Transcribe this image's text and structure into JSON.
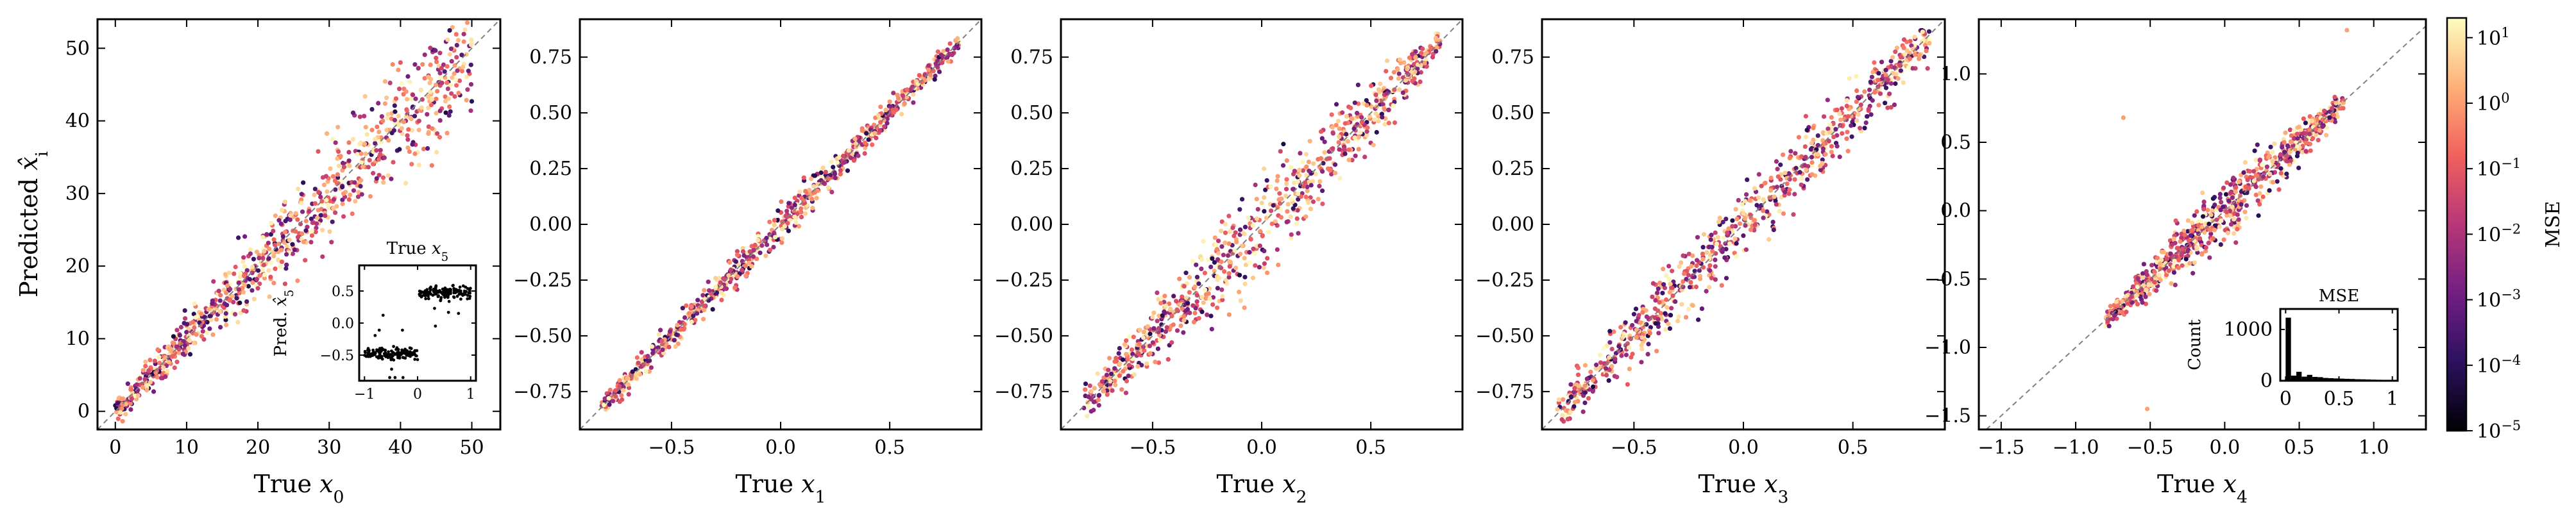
{
  "colors": {
    "colormap": [
      "#000004",
      "#2c115f",
      "#721f81",
      "#b73779",
      "#f1605d",
      "#feb078",
      "#fcfdbf"
    ],
    "diagonal": "#808080",
    "inset_marker": "#000000"
  },
  "chart_data": [
    {
      "type": "scatter",
      "xlabel_text": "True ",
      "xlabel_var": "x",
      "xlabel_sub": "0",
      "ylabel_text": "Predicted ",
      "ylabel_var": "x̂",
      "ylabel_sub": "i",
      "xlim": [
        -2.5,
        54
      ],
      "ylim": [
        -2.5,
        54
      ],
      "xticks": [
        0,
        10,
        20,
        30,
        40,
        50
      ],
      "yticks": [
        0,
        10,
        20,
        30,
        40,
        50
      ],
      "xtick_labels": [
        "0",
        "10",
        "20",
        "30",
        "40",
        "50"
      ],
      "ytick_labels": [
        "0",
        "10",
        "20",
        "30",
        "40",
        "50"
      ],
      "diagonal": true,
      "grid": false,
      "point_cloud": {
        "x_range": [
          0,
          50
        ],
        "spread": [
          0.8,
          4.0
        ],
        "count": 900
      },
      "inset": {
        "type": "scatter",
        "title_text": "True ",
        "title_var": "x",
        "title_sub": "5",
        "ylabel_text": "Pred. ",
        "ylabel_var": "x̂",
        "ylabel_sub": "5",
        "xlim": [
          -1.1,
          1.1
        ],
        "ylim": [
          -0.9,
          0.9
        ],
        "xticks": [
          -1,
          0,
          1
        ],
        "yticks": [
          -0.5,
          0,
          0.5
        ],
        "xtick_labels": [
          "−1",
          "0",
          "1"
        ],
        "ytick_labels": [
          "−0.5",
          "0.0",
          "0.5"
        ],
        "clusters": [
          {
            "x_range": [
              -1,
              0
            ],
            "y_center": -0.48,
            "count": 140
          },
          {
            "x_range": [
              0,
              1
            ],
            "y_center": 0.48,
            "count": 140
          }
        ]
      }
    },
    {
      "type": "scatter",
      "xlabel_text": "True ",
      "xlabel_var": "x",
      "xlabel_sub": "1",
      "xlim": [
        -0.92,
        0.92
      ],
      "ylim": [
        -0.92,
        0.92
      ],
      "xticks": [
        -0.5,
        0,
        0.5
      ],
      "yticks": [
        -0.75,
        -0.5,
        -0.25,
        0,
        0.25,
        0.5,
        0.75
      ],
      "xtick_labels": [
        "−0.5",
        "0.0",
        "0.5"
      ],
      "ytick_labels": [
        "−0.75",
        "−0.50",
        "−0.25",
        "0.00",
        "0.25",
        "0.50",
        "0.75"
      ],
      "diagonal": true,
      "point_cloud": {
        "x_range": [
          -0.82,
          0.82
        ],
        "spread": [
          0.02,
          0.04
        ],
        "count": 800
      }
    },
    {
      "type": "scatter",
      "xlabel_text": "True ",
      "xlabel_var": "x",
      "xlabel_sub": "2",
      "xlim": [
        -0.92,
        0.92
      ],
      "ylim": [
        -0.92,
        0.92
      ],
      "xticks": [
        -0.5,
        0,
        0.5
      ],
      "yticks": [
        -0.75,
        -0.5,
        -0.25,
        0,
        0.25,
        0.5,
        0.75
      ],
      "xtick_labels": [
        "−0.5",
        "0.0",
        "0.5"
      ],
      "ytick_labels": [
        "−0.75",
        "−0.50",
        "−0.25",
        "0.00",
        "0.25",
        "0.50",
        "0.75"
      ],
      "diagonal": true,
      "point_cloud": {
        "x_range": [
          -0.82,
          0.82
        ],
        "spread": [
          0.03,
          0.12
        ],
        "count": 800
      }
    },
    {
      "type": "scatter",
      "xlabel_text": "True ",
      "xlabel_var": "x",
      "xlabel_sub": "3",
      "xlim": [
        -0.92,
        0.92
      ],
      "ylim": [
        -0.92,
        0.92
      ],
      "xticks": [
        -0.5,
        0,
        0.5
      ],
      "yticks": [
        -0.75,
        -0.5,
        -0.25,
        0,
        0.25,
        0.5,
        0.75
      ],
      "xtick_labels": [
        "−0.5",
        "0.0",
        "0.5"
      ],
      "ytick_labels": [
        "−0.75",
        "−0.50",
        "−0.25",
        "0.00",
        "0.25",
        "0.50",
        "0.75"
      ],
      "diagonal": true,
      "point_cloud": {
        "x_range": [
          -0.85,
          0.85
        ],
        "spread": [
          0.04,
          0.08
        ],
        "count": 800
      }
    },
    {
      "type": "scatter",
      "xlabel_text": "True ",
      "xlabel_var": "x",
      "xlabel_sub": "4",
      "xlim": [
        -1.65,
        1.35
      ],
      "ylim": [
        -1.6,
        1.4
      ],
      "xticks": [
        -1.5,
        -1.0,
        -0.5,
        0,
        0.5,
        1.0
      ],
      "yticks": [
        -1.5,
        -1.0,
        -0.5,
        0,
        0.5,
        1.0
      ],
      "xtick_labels": [
        "−1.5",
        "−1.0",
        "−0.5",
        "0.0",
        "0.5",
        "1.0"
      ],
      "ytick_labels": [
        "−1.5",
        "−1.0",
        "−0.5",
        "0.0",
        "0.5",
        "1.0"
      ],
      "diagonal": true,
      "point_cloud": {
        "x_range": [
          -0.8,
          0.8
        ],
        "spread": [
          0.03,
          0.12
        ],
        "count": 800
      },
      "outliers": [
        {
          "x": -0.68,
          "y": 0.68
        },
        {
          "x": 0.82,
          "y": 1.32
        },
        {
          "x": -0.52,
          "y": -1.45
        },
        {
          "x": 0.3,
          "y": 0.4
        },
        {
          "x": 0.45,
          "y": 0.5
        }
      ],
      "inset": {
        "type": "bar",
        "title": "MSE",
        "ylabel": "Count",
        "xlim": [
          -0.05,
          1.05
        ],
        "ylim": [
          0,
          1400
        ],
        "xticks": [
          0,
          0.5,
          1
        ],
        "yticks": [
          0,
          1000
        ],
        "xtick_labels": [
          "0",
          "0.5",
          "1"
        ],
        "ytick_labels": [
          "0",
          "1000"
        ],
        "bin_edges": [
          0,
          0.05,
          0.1,
          0.15,
          0.2,
          0.25,
          0.3,
          0.35,
          0.4,
          0.45,
          0.5,
          0.55,
          0.6,
          0.65,
          0.7,
          0.75,
          0.8,
          0.85,
          0.9,
          0.95,
          1.0
        ],
        "counts": [
          1230,
          100,
          175,
          80,
          115,
          75,
          70,
          55,
          50,
          45,
          42,
          38,
          35,
          30,
          28,
          25,
          22,
          20,
          18,
          15
        ]
      }
    }
  ],
  "colorbar": {
    "label": "MSE",
    "scale": "log",
    "range": [
      1e-05,
      20
    ],
    "ticks": [
      {
        "exp": "−5",
        "value": 1e-05
      },
      {
        "exp": "−4",
        "value": 0.0001
      },
      {
        "exp": "−3",
        "value": 0.001
      },
      {
        "exp": "−2",
        "value": 0.01
      },
      {
        "exp": "−1",
        "value": 0.1
      },
      {
        "exp": "0",
        "value": 1
      },
      {
        "exp": "1",
        "value": 10
      }
    ],
    "tick_base": "10"
  }
}
